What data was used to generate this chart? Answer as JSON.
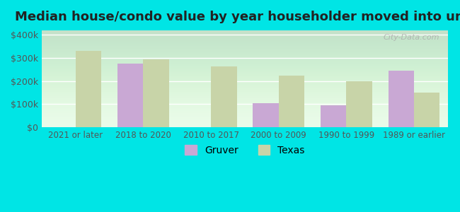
{
  "title": "Median house/condo value by year householder moved into unit",
  "categories": [
    "2021 or later",
    "2018 to 2020",
    "2010 to 2017",
    "2000 to 2009",
    "1990 to 1999",
    "1989 or earlier"
  ],
  "gruver": [
    0,
    275000,
    0,
    105000,
    95000,
    245000
  ],
  "texas": [
    330000,
    295000,
    265000,
    225000,
    200000,
    150000
  ],
  "gruver_color": "#c9a8d4",
  "texas_color": "#c8d4a8",
  "background_color": "#e8fce8",
  "outer_background": "#00e5e5",
  "ylim": [
    0,
    420000
  ],
  "yticks": [
    0,
    100000,
    200000,
    300000,
    400000
  ],
  "ytick_labels": [
    "$0",
    "$100k",
    "$200k",
    "$300k",
    "$400k"
  ],
  "bar_width": 0.38,
  "watermark": "City-Data.com",
  "legend_gruver": "Gruver",
  "legend_texas": "Texas"
}
